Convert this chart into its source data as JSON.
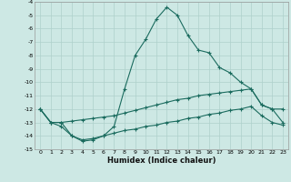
{
  "xlabel": "Humidex (Indice chaleur)",
  "x": [
    0,
    1,
    2,
    3,
    4,
    5,
    6,
    7,
    8,
    9,
    10,
    11,
    12,
    13,
    14,
    15,
    16,
    17,
    18,
    19,
    20,
    21,
    22,
    23
  ],
  "line1": [
    -12.0,
    -13.0,
    -13.0,
    -14.0,
    -14.4,
    -14.3,
    -14.0,
    -13.3,
    -10.5,
    -8.0,
    -6.8,
    -5.3,
    -4.4,
    -5.0,
    -6.5,
    -7.6,
    -7.8,
    -8.9,
    -9.3,
    -10.0,
    -10.5,
    -11.7,
    -12.0,
    -13.0
  ],
  "line2": [
    -12.0,
    -13.0,
    -13.0,
    -12.9,
    -12.8,
    -12.7,
    -12.6,
    -12.5,
    -12.3,
    -12.1,
    -11.9,
    -11.7,
    -11.5,
    -11.3,
    -11.2,
    -11.0,
    -10.9,
    -10.8,
    -10.7,
    -10.6,
    -10.5,
    -11.7,
    -12.0,
    -12.0
  ],
  "line3": [
    -12.0,
    -13.0,
    -13.3,
    -14.0,
    -14.3,
    -14.2,
    -14.0,
    -13.8,
    -13.6,
    -13.5,
    -13.3,
    -13.2,
    -13.0,
    -12.9,
    -12.7,
    -12.6,
    -12.4,
    -12.3,
    -12.1,
    -12.0,
    -11.8,
    -12.5,
    -13.0,
    -13.2
  ],
  "ylim": [
    -15.0,
    -4.0
  ],
  "xlim": [
    -0.5,
    23.5
  ],
  "yticks": [
    -4,
    -5,
    -6,
    -7,
    -8,
    -9,
    -10,
    -11,
    -12,
    -13,
    -14,
    -15
  ],
  "xticks": [
    0,
    1,
    2,
    3,
    4,
    5,
    6,
    7,
    8,
    9,
    10,
    11,
    12,
    13,
    14,
    15,
    16,
    17,
    18,
    19,
    20,
    21,
    22,
    23
  ],
  "line_color": "#1a6b5e",
  "bg_color": "#cde8e4",
  "grid_color": "#aed0cb"
}
